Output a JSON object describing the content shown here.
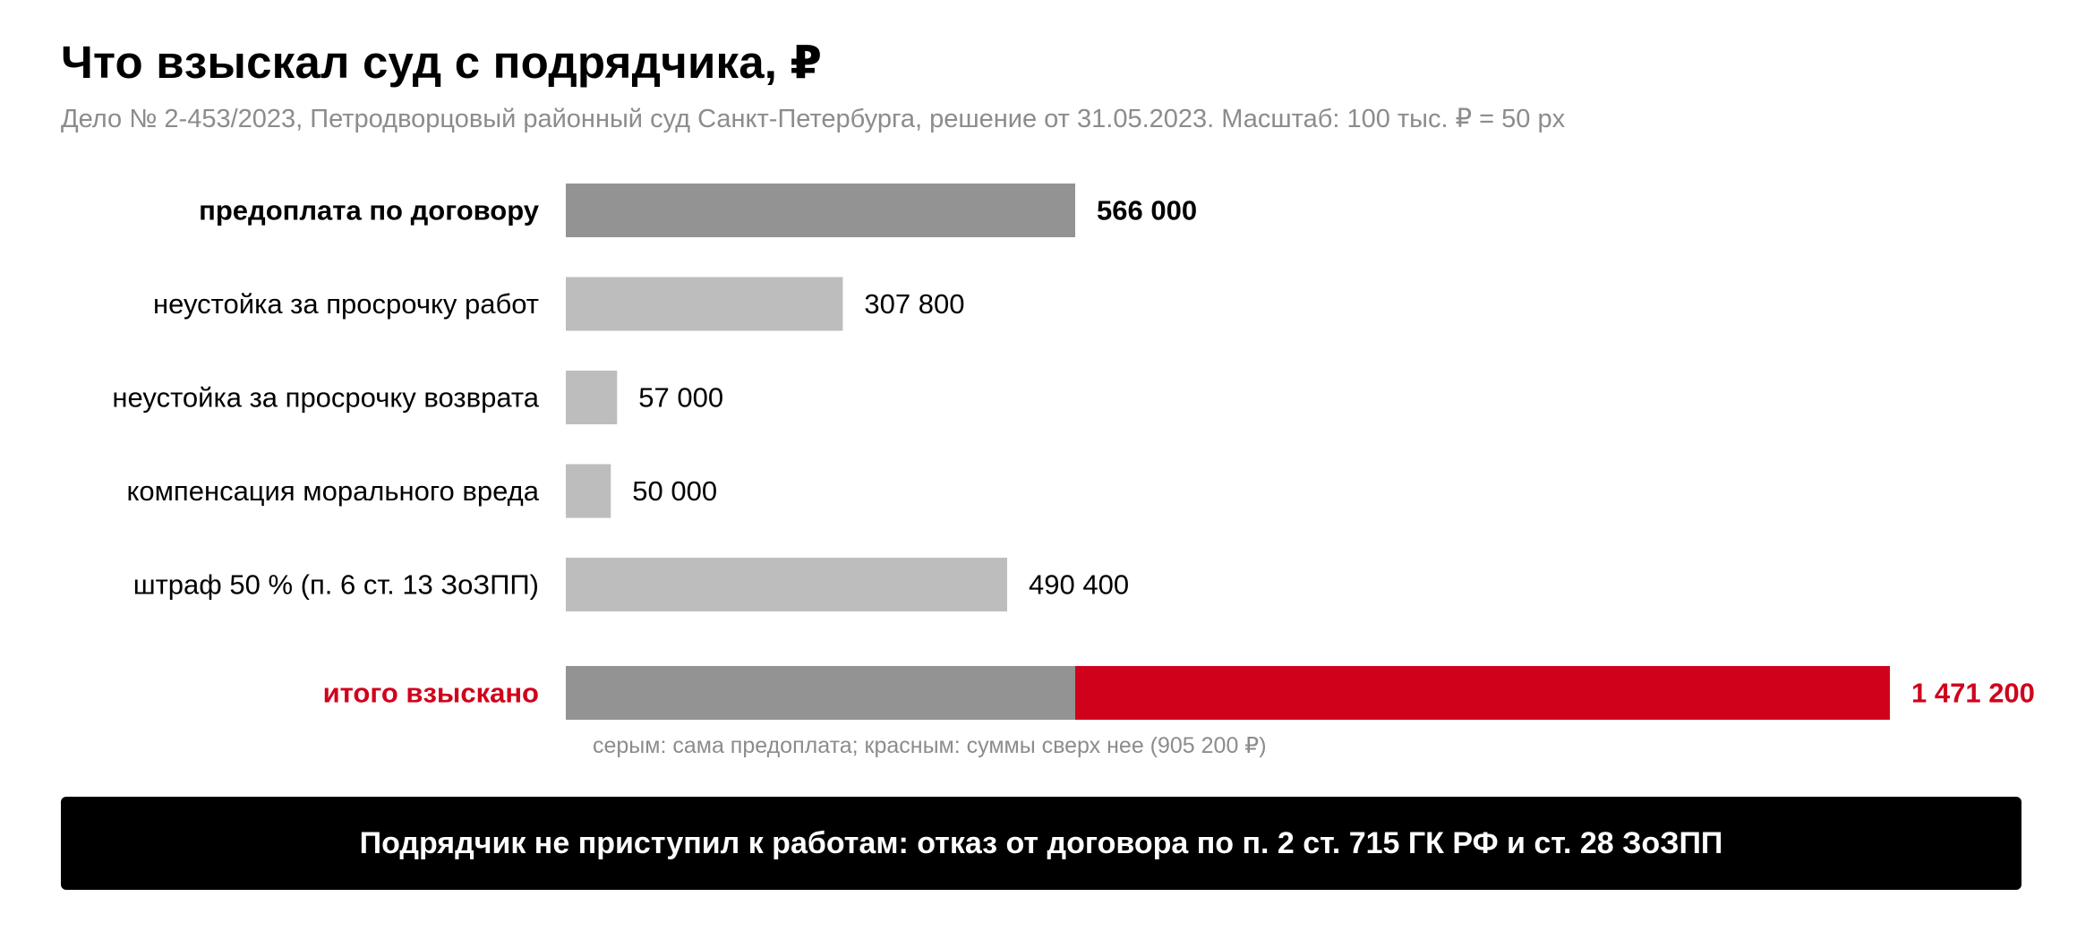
{
  "title": "Что взыскал суд с подрядчика, ₽",
  "subtitle": "Дело № 2-453/2023, Петродворцовый районный суд Санкт-Петербурга, решение от 31.05.2023. Масштаб: 100 тыс. ₽ = 50 px",
  "chart_data": {
    "type": "bar",
    "orientation": "horizontal",
    "title": "Что взыскал суд с подрядчика, ₽",
    "categories": [
      "предоплата по договору",
      "неустойка за просрочку работ",
      "неустойка за просрочку возврата",
      "компенсация морального вреда",
      "штраф 50 % (п. 6 ст. 13 ЗоЗПП)"
    ],
    "values": [
      566000,
      307800,
      57000,
      50000,
      490400
    ],
    "value_labels": [
      "566 000",
      "307 800",
      "57 000",
      "50 000",
      "490 400"
    ],
    "highlight_index": 0,
    "total": {
      "label": "итого взыскано",
      "value": 1471200,
      "value_label": "1 471 200",
      "segments": [
        {
          "name": "сама предоплата",
          "value": 566000
        },
        {
          "name": "суммы сверх нее",
          "value": 905200
        }
      ]
    },
    "colors": {
      "highlight": "#939393",
      "normal": "#bdbdbd",
      "base_segment": "#939393",
      "extra_segment": "#d0021b",
      "total_text": "#d0021b"
    },
    "xlim": [
      0,
      1471200
    ],
    "grid": false,
    "legend": "none"
  },
  "note": "серым: сама предоплата; красным: суммы сверх нее (905 200 ₽)",
  "banner": "Подрядчик не приступил к работам: отказ от договора по п. 2 ст. 715 ГК РФ и ст. 28 ЗоЗПП"
}
